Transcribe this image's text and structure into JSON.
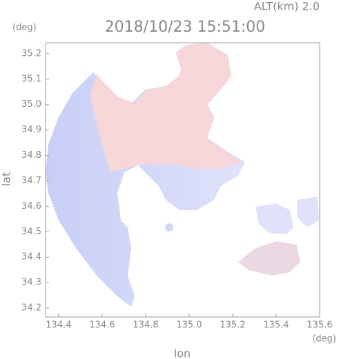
{
  "chart_data": {
    "type": "radar-map",
    "header": "ALT(km) 2.0",
    "title": "2018/10/23 15:51:00",
    "y_unit": "(deg)",
    "x_unit": "(deg)",
    "xlabel": "lon",
    "ylabel": "lat",
    "xlim": [
      134.34,
      135.6
    ],
    "ylim": [
      34.165,
      35.243
    ],
    "xticks": [
      134.4,
      134.6,
      134.8,
      {
        "value": 135,
        "label": "135.0"
      },
      135.2,
      135.4,
      135.6
    ],
    "yticks": [
      34.2,
      34.3,
      34.4,
      34.5,
      34.6,
      34.7,
      34.8,
      34.9,
      {
        "value": 35,
        "label": "35.0"
      },
      35.1,
      35.2
    ]
  }
}
